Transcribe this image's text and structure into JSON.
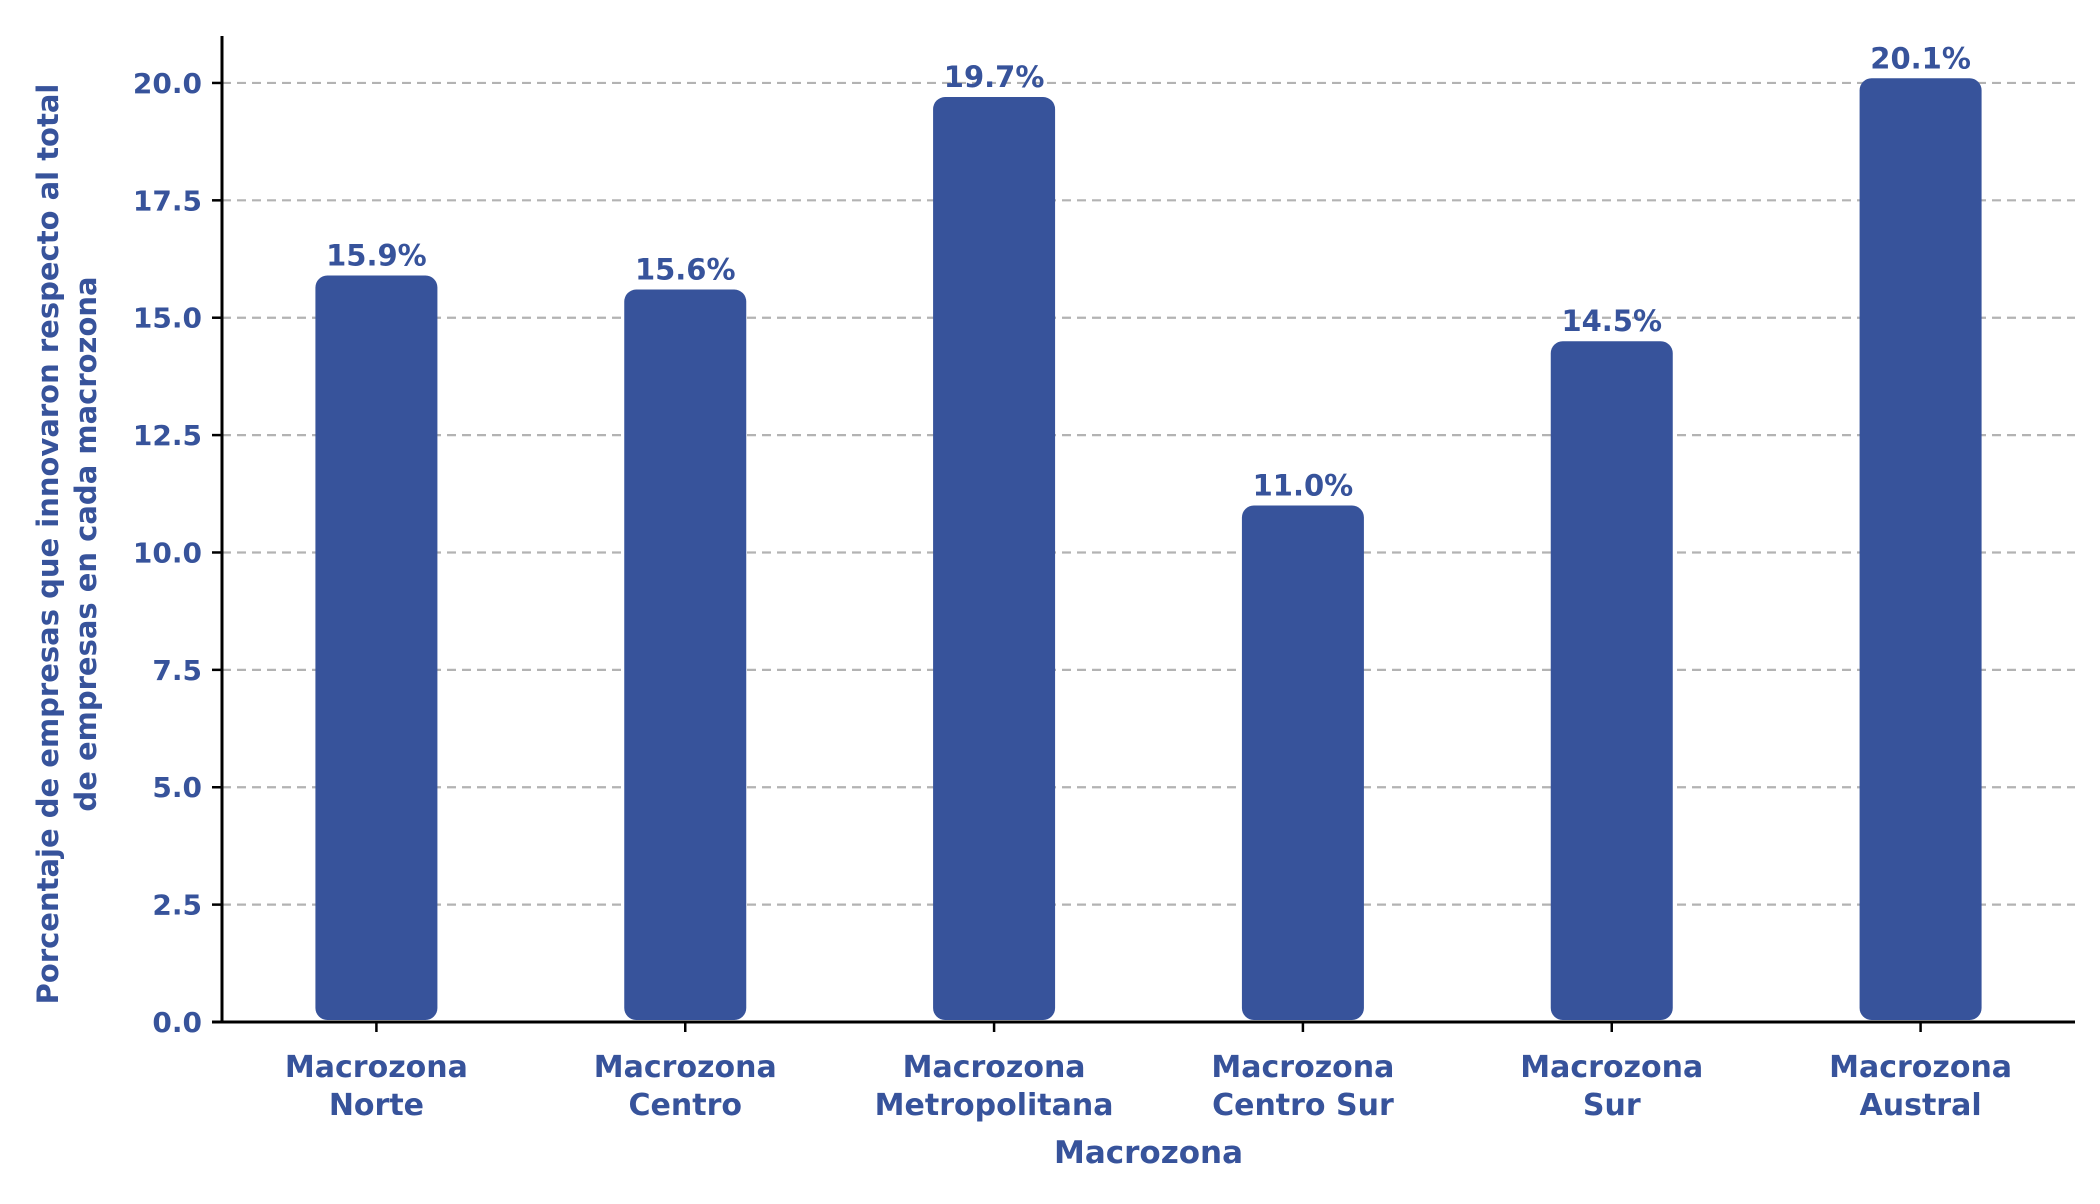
{
  "chart_data": {
    "type": "bar",
    "title": "",
    "xlabel": "Macrozona",
    "ylabel": [
      "Porcentaje de empresas que innovaron respecto al total",
      "de empresas en cada macrozona"
    ],
    "categories": [
      [
        "Macrozona",
        "Norte"
      ],
      [
        "Macrozona",
        "Centro"
      ],
      [
        "Macrozona",
        "Metropolitana"
      ],
      [
        "Macrozona",
        "Centro Sur"
      ],
      [
        "Macrozona",
        "Sur"
      ],
      [
        "Macrozona",
        "Austral"
      ]
    ],
    "values": [
      15.9,
      15.6,
      19.7,
      11.0,
      14.5,
      20.1
    ],
    "data_labels": [
      "15.9%",
      "15.6%",
      "19.7%",
      "11.0%",
      "14.5%",
      "20.1%"
    ],
    "ylim": [
      0,
      21
    ],
    "yticks": [
      0.0,
      2.5,
      5.0,
      7.5,
      10.0,
      12.5,
      15.0,
      17.5,
      20.0
    ],
    "ytick_labels": [
      "0.0",
      "2.5",
      "5.0",
      "7.5",
      "10.0",
      "12.5",
      "15.0",
      "17.5",
      "20.0"
    ],
    "grid": "horizontal dashed",
    "legend": "none"
  },
  "colors": {
    "bar": "#37539B",
    "text": "#37539B",
    "axis": "#000000",
    "grid": "#b3b3b3"
  }
}
